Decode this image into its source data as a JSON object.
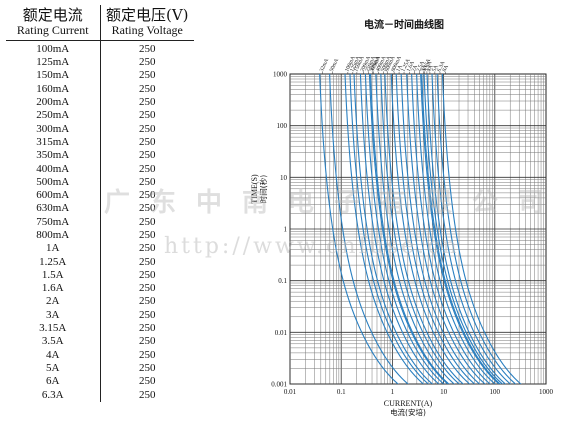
{
  "table": {
    "col1_zh": "额定电流",
    "col1_en": "Rating Current",
    "col2_zh": "额定电压(V)",
    "col2_en": "Rating Voltage",
    "rows": [
      [
        "100mA",
        "250"
      ],
      [
        "125mA",
        "250"
      ],
      [
        "150mA",
        "250"
      ],
      [
        "160mA",
        "250"
      ],
      [
        "200mA",
        "250"
      ],
      [
        "250mA",
        "250"
      ],
      [
        "300mA",
        "250"
      ],
      [
        "315mA",
        "250"
      ],
      [
        "350mA",
        "250"
      ],
      [
        "400mA",
        "250"
      ],
      [
        "500mA",
        "250"
      ],
      [
        "600mA",
        "250"
      ],
      [
        "630mA",
        "250"
      ],
      [
        "750mA",
        "250"
      ],
      [
        "800mA",
        "250"
      ],
      [
        "1A",
        "250"
      ],
      [
        "1.25A",
        "250"
      ],
      [
        "1.5A",
        "250"
      ],
      [
        "1.6A",
        "250"
      ],
      [
        "2A",
        "250"
      ],
      [
        "3A",
        "250"
      ],
      [
        "3.15A",
        "250"
      ],
      [
        "3.5A",
        "250"
      ],
      [
        "4A",
        "250"
      ],
      [
        "5A",
        "250"
      ],
      [
        "6A",
        "250"
      ],
      [
        "6.3A",
        "250"
      ]
    ]
  },
  "watermark": {
    "company": "广东中南电子有限公司",
    "url": "http://www.cnfuse.cn"
  },
  "chart_data": {
    "type": "line",
    "title": "电流－时间曲线图",
    "xlabel": "CURRENT(A)",
    "xlabel_zh": "电流(安培)",
    "ylabel": "TIME(S)",
    "ylabel_zh": "时间(秒)",
    "xscale": "log",
    "yscale": "log",
    "xlim": [
      0.01,
      1000
    ],
    "ylim": [
      0.001,
      1000
    ],
    "x_ticks": [
      "0.01",
      "0.1",
      "1",
      "10",
      "100",
      "1000"
    ],
    "y_ticks": [
      "1000",
      "100",
      "10",
      "1",
      "0.1",
      "0.01",
      "0.001"
    ],
    "grid": true,
    "line_color": "#2a7fc0",
    "series": [
      {
        "name": "32mA",
        "rating": 0.032
      },
      {
        "name": "50mA",
        "rating": 0.05
      },
      {
        "name": "100mA",
        "rating": 0.1
      },
      {
        "name": "125mA",
        "rating": 0.125
      },
      {
        "name": "150mA",
        "rating": 0.15
      },
      {
        "name": "200mA",
        "rating": 0.2
      },
      {
        "name": "250mA",
        "rating": 0.25
      },
      {
        "name": "300mA",
        "rating": 0.3
      },
      {
        "name": "315mA",
        "rating": 0.315
      },
      {
        "name": "400mA",
        "rating": 0.4
      },
      {
        "name": "500mA",
        "rating": 0.5
      },
      {
        "name": "600mA",
        "rating": 0.6
      },
      {
        "name": "800mA",
        "rating": 0.8
      },
      {
        "name": "1A",
        "rating": 1
      },
      {
        "name": "1.25A",
        "rating": 1.25
      },
      {
        "name": "1.6A",
        "rating": 1.6
      },
      {
        "name": "2A",
        "rating": 2
      },
      {
        "name": "2.5A",
        "rating": 2.5
      },
      {
        "name": "3A",
        "rating": 3
      },
      {
        "name": "3.15A",
        "rating": 3.15
      },
      {
        "name": "3.5A",
        "rating": 3.5
      },
      {
        "name": "4A",
        "rating": 4
      },
      {
        "name": "5A",
        "rating": 5
      },
      {
        "name": "6.3A",
        "rating": 6.3
      },
      {
        "name": "8A",
        "rating": 8
      }
    ]
  }
}
